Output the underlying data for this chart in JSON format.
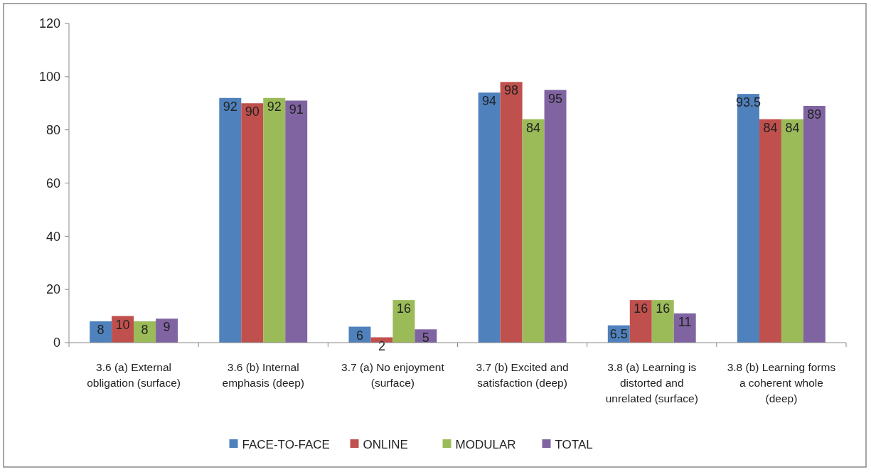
{
  "chart_data": {
    "type": "bar",
    "categories": [
      "3.6 (a) External obligation (surface)",
      "3.6 (b) Internal emphasis (deep)",
      "3.7 (a) No enjoyment (surface)",
      "3.7 (b) Excited and satisfaction (deep)",
      "3.8 (a) Learning is distorted and unrelated (surface)",
      "3.8 (b) Learning forms a coherent whole (deep)"
    ],
    "series": [
      {
        "name": "FACE-TO-FACE",
        "color": "#4f81bd",
        "values": [
          8,
          92,
          6,
          94,
          6.5,
          93.5
        ]
      },
      {
        "name": "ONLINE",
        "color": "#c0504d",
        "values": [
          10,
          90,
          2,
          98,
          16,
          84
        ]
      },
      {
        "name": "MODULAR",
        "color": "#9bbb59",
        "values": [
          8,
          92,
          16,
          84,
          16,
          84
        ]
      },
      {
        "name": "TOTAL",
        "color": "#8064a2",
        "values": [
          9,
          91,
          5,
          95,
          11,
          89
        ]
      }
    ],
    "ylim": [
      0,
      120
    ],
    "yticks": [
      0,
      20,
      40,
      60,
      80,
      100,
      120
    ],
    "grid": false,
    "legend": "bottom",
    "data_labels": true
  }
}
